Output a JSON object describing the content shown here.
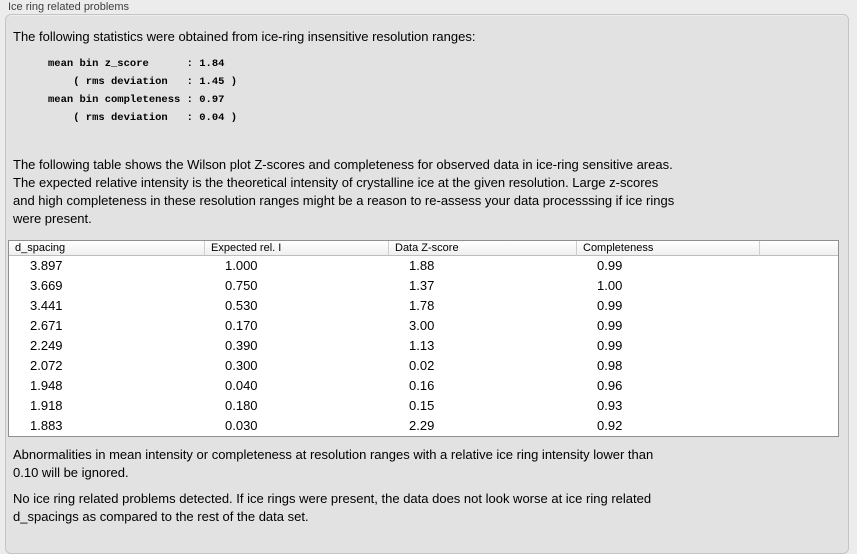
{
  "group_label": "Ice ring related problems",
  "intro": "The following statistics were obtained from ice-ring insensitive resolution ranges:",
  "stats_block": {
    "lines": [
      "mean bin z_score      : 1.84",
      "    ( rms deviation   : 1.45 )",
      "mean bin completeness : 0.97",
      "    ( rms deviation   : 0.04 )"
    ],
    "mean_bin_z_score": "1.84",
    "z_score_rms_deviation": "1.45",
    "mean_bin_completeness": "0.97",
    "completeness_rms_deviation": "0.04"
  },
  "table_intro_lines": [
    "The following table shows the Wilson plot Z-scores and completeness for observed data in ice-ring sensitive areas.",
    "The expected relative intensity is the theoretical intensity of crystalline ice at the given resolution. Large z-scores",
    "and high completeness in these resolution ranges might be a reason to re-assess your data processsing if ice rings",
    "were present."
  ],
  "table": {
    "columns": [
      "d_spacing",
      "Expected rel. I",
      "Data Z-score",
      "Completeness"
    ],
    "rows": [
      [
        "3.897",
        "1.000",
        "1.88",
        "0.99"
      ],
      [
        "3.669",
        "0.750",
        "1.37",
        "1.00"
      ],
      [
        "3.441",
        "0.530",
        "1.78",
        "0.99"
      ],
      [
        "2.671",
        "0.170",
        "3.00",
        "0.99"
      ],
      [
        "2.249",
        "0.390",
        "1.13",
        "0.99"
      ],
      [
        "2.072",
        "0.300",
        "0.02",
        "0.98"
      ],
      [
        "1.948",
        "0.040",
        "0.16",
        "0.96"
      ],
      [
        "1.918",
        "0.180",
        "0.15",
        "0.93"
      ],
      [
        "1.883",
        "0.030",
        "2.29",
        "0.92"
      ]
    ]
  },
  "ignore_note_lines": [
    "Abnormalities in mean intensity or completeness at resolution ranges with a relative ice ring intensity lower than",
    "0.10 will be ignored."
  ],
  "conclusion_lines": [
    "No ice ring related problems detected. If ice rings were present, the data does not look worse at ice ring related",
    "d_spacings as compared to the rest of the data set."
  ],
  "colors": {
    "outer_background": "#ececec",
    "panel_background": "#e2e2e2",
    "panel_border": "#c4c4c4",
    "table_border": "#8f8f8f",
    "table_background": "#ffffff"
  }
}
